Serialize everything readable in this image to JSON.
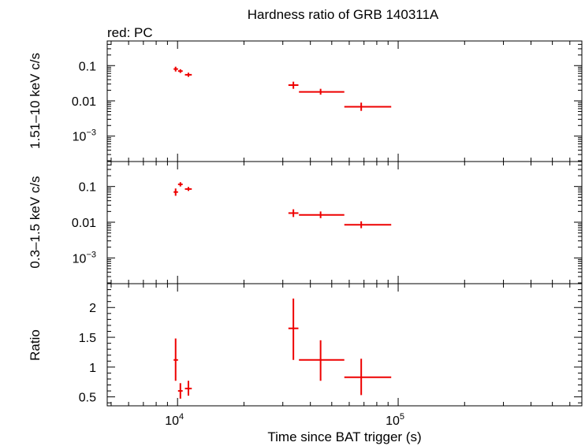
{
  "chart_data": {
    "type": "scatter",
    "title": "Hardness ratio of GRB 140311A",
    "subtitle": "red: PC",
    "xlabel": "Time since BAT trigger (s)",
    "x_scale": "log",
    "xlim": [
      4800,
      680000
    ],
    "x_ticks": [
      {
        "value": 10000,
        "mantissa": "10",
        "exp": "4"
      },
      {
        "value": 100000,
        "mantissa": "10",
        "exp": "5"
      }
    ],
    "series_color": "#ee0000",
    "panels": [
      {
        "id": "hard",
        "ylabel": "1.51–10 keV c/s",
        "y_scale": "log",
        "ylim": [
          0.00019,
          0.5
        ],
        "y_ticks": [
          {
            "value": 0.1,
            "label": "0.1"
          },
          {
            "value": 0.01,
            "label": "0.01"
          },
          {
            "value": 0.001,
            "mantissa": "10",
            "exp": "−3"
          }
        ],
        "points": [
          {
            "x": 9800,
            "xlo": 9600,
            "xhi": 10050,
            "y": 0.08,
            "ylo": 0.068,
            "yhi": 0.093
          },
          {
            "x": 10300,
            "xlo": 10050,
            "xhi": 10550,
            "y": 0.07,
            "ylo": 0.062,
            "yhi": 0.079
          },
          {
            "x": 11200,
            "xlo": 10800,
            "xhi": 11600,
            "y": 0.055,
            "ylo": 0.048,
            "yhi": 0.063
          },
          {
            "x": 33500,
            "xlo": 31800,
            "xhi": 35300,
            "y": 0.028,
            "ylo": 0.022,
            "yhi": 0.035
          },
          {
            "x": 44500,
            "xlo": 35500,
            "xhi": 57000,
            "y": 0.018,
            "ylo": 0.015,
            "yhi": 0.022
          },
          {
            "x": 68000,
            "xlo": 57000,
            "xhi": 93000,
            "y": 0.0068,
            "ylo": 0.0052,
            "yhi": 0.0089
          }
        ]
      },
      {
        "id": "soft",
        "ylabel": "0.3–1.5 keV c/s",
        "y_scale": "log",
        "ylim": [
          0.00019,
          0.5
        ],
        "y_ticks": [
          {
            "value": 0.1,
            "label": "0.1"
          },
          {
            "value": 0.01,
            "label": "0.01"
          },
          {
            "value": 0.001,
            "mantissa": "10",
            "exp": "−3"
          }
        ],
        "points": [
          {
            "x": 9800,
            "xlo": 9600,
            "xhi": 10050,
            "y": 0.07,
            "ylo": 0.055,
            "yhi": 0.088
          },
          {
            "x": 10300,
            "xlo": 10050,
            "xhi": 10550,
            "y": 0.115,
            "ylo": 0.1,
            "yhi": 0.132
          },
          {
            "x": 11200,
            "xlo": 10800,
            "xhi": 11600,
            "y": 0.085,
            "ylo": 0.075,
            "yhi": 0.097
          },
          {
            "x": 33500,
            "xlo": 31800,
            "xhi": 35300,
            "y": 0.018,
            "ylo": 0.014,
            "yhi": 0.023
          },
          {
            "x": 44500,
            "xlo": 35500,
            "xhi": 57000,
            "y": 0.016,
            "ylo": 0.013,
            "yhi": 0.02
          },
          {
            "x": 68000,
            "xlo": 57000,
            "xhi": 93000,
            "y": 0.0085,
            "ylo": 0.0068,
            "yhi": 0.0106
          }
        ]
      },
      {
        "id": "ratio",
        "ylabel": "Ratio",
        "y_scale": "linear",
        "ylim": [
          0.35,
          2.4
        ],
        "y_ticks": [
          {
            "value": 0.5,
            "label": "0.5"
          },
          {
            "value": 1,
            "label": "1"
          },
          {
            "value": 1.5,
            "label": "1.5"
          },
          {
            "value": 2,
            "label": "2"
          }
        ],
        "points": [
          {
            "x": 9800,
            "xlo": 9600,
            "xhi": 10050,
            "y": 1.12,
            "ylo": 0.77,
            "yhi": 1.48
          },
          {
            "x": 10300,
            "xlo": 10050,
            "xhi": 10550,
            "y": 0.6,
            "ylo": 0.47,
            "yhi": 0.73
          },
          {
            "x": 11200,
            "xlo": 10800,
            "xhi": 11600,
            "y": 0.64,
            "ylo": 0.52,
            "yhi": 0.77
          },
          {
            "x": 33500,
            "xlo": 31800,
            "xhi": 35300,
            "y": 1.65,
            "ylo": 1.12,
            "yhi": 2.15
          },
          {
            "x": 44500,
            "xlo": 35500,
            "xhi": 57000,
            "y": 1.12,
            "ylo": 0.77,
            "yhi": 1.45
          },
          {
            "x": 68000,
            "xlo": 57000,
            "xhi": 93000,
            "y": 0.83,
            "ylo": 0.53,
            "yhi": 1.14
          }
        ]
      }
    ]
  }
}
